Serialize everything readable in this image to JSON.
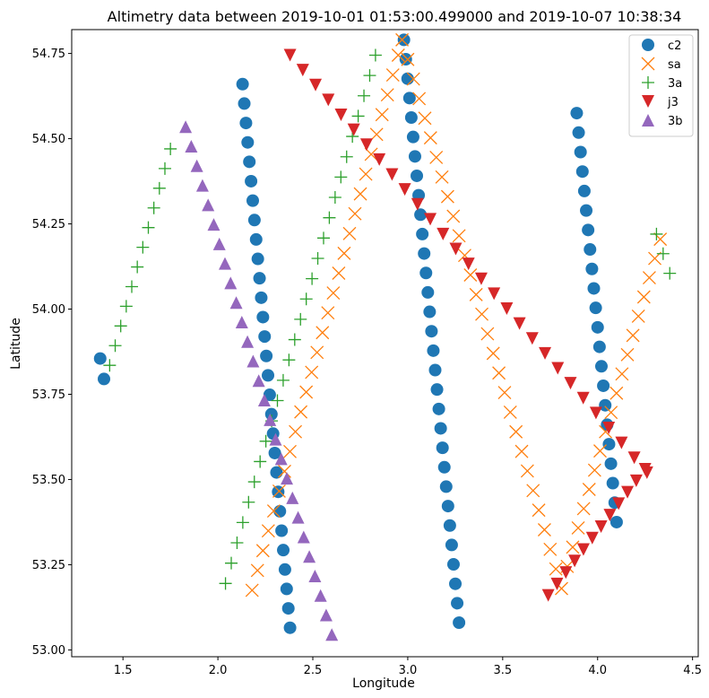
{
  "chart_data": {
    "type": "scatter",
    "title": "Altimetry data between 2019-10-01 01:53:00.499000 and 2019-10-07 10:38:34",
    "xlabel": "Longitude",
    "ylabel": "Latitude",
    "xlim": [
      1.23,
      4.53
    ],
    "ylim": [
      52.98,
      54.82
    ],
    "xticks": [
      1.5,
      2.0,
      2.5,
      3.0,
      3.5,
      4.0,
      4.5
    ],
    "xtick_labels": [
      "1.5",
      "2.0",
      "2.5",
      "3.0",
      "3.5",
      "4.0",
      "4.5"
    ],
    "yticks": [
      53.0,
      53.25,
      53.5,
      53.75,
      54.0,
      54.25,
      54.5,
      54.75
    ],
    "ytick_labels": [
      "53.00",
      "53.25",
      "53.50",
      "53.75",
      "54.00",
      "54.25",
      "54.50",
      "54.75"
    ],
    "grid": false,
    "legend_position": "top-right",
    "series": [
      {
        "name": "c2",
        "color": "#1f77b4",
        "marker": "circle",
        "segments": [
          {
            "x0": 1.38,
            "y0": 53.855,
            "x1": 1.4,
            "y1": 53.795,
            "n": 2
          },
          {
            "x0": 2.13,
            "y0": 54.66,
            "x1": 2.38,
            "y1": 53.065,
            "n": 29
          },
          {
            "x0": 2.98,
            "y0": 54.79,
            "x1": 3.27,
            "y1": 53.08,
            "n": 31
          },
          {
            "x0": 3.89,
            "y0": 54.575,
            "x1": 4.1,
            "y1": 53.375,
            "n": 22
          }
        ]
      },
      {
        "name": "sa",
        "color": "#ff7f0e",
        "marker": "x",
        "segments": [
          {
            "x0": 2.18,
            "y0": 53.175,
            "x1": 2.95,
            "y1": 54.745,
            "n": 28
          },
          {
            "x0": 2.97,
            "y0": 54.79,
            "x1": 3.81,
            "y1": 53.18,
            "n": 29
          },
          {
            "x0": 3.84,
            "y0": 53.245,
            "x1": 4.33,
            "y1": 54.205,
            "n": 18
          }
        ]
      },
      {
        "name": "3a",
        "color": "#2ca02c",
        "marker": "plus",
        "segments": [
          {
            "x0": 1.43,
            "y0": 53.835,
            "x1": 1.75,
            "y1": 54.47,
            "n": 12
          },
          {
            "x0": 2.04,
            "y0": 53.195,
            "x1": 2.83,
            "y1": 54.745,
            "n": 27
          },
          {
            "x0": 4.31,
            "y0": 54.22,
            "x1": 4.38,
            "y1": 54.105,
            "n": 3
          }
        ]
      },
      {
        "name": "j3",
        "color": "#d62728",
        "marker": "triangle-down",
        "segments": [
          {
            "x0": 2.38,
            "y0": 54.745,
            "x1": 4.26,
            "y1": 53.52,
            "n": 29
          },
          {
            "x0": 3.74,
            "y0": 53.16,
            "x1": 4.25,
            "y1": 53.53,
            "n": 12
          }
        ]
      },
      {
        "name": "3b",
        "color": "#9467bd",
        "marker": "triangle-up",
        "segments": [
          {
            "x0": 1.83,
            "y0": 54.535,
            "x1": 2.6,
            "y1": 53.045,
            "n": 27
          }
        ]
      }
    ]
  }
}
